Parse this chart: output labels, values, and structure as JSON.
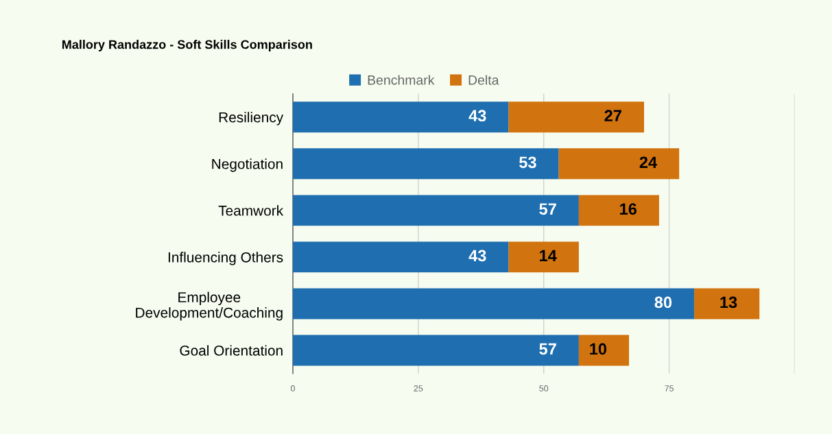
{
  "chart_data": {
    "type": "bar",
    "orientation": "horizontal",
    "stacked": true,
    "title": "Mallory Randazzo - Soft Skills Comparison",
    "categories": [
      "Resiliency",
      "Negotiation",
      "Teamwork",
      "Influencing Others",
      "Employee\nDevelopment/Coaching",
      "Goal Orientation"
    ],
    "series": [
      {
        "name": "Benchmark",
        "color": "#1f6fb0",
        "values": [
          43,
          53,
          57,
          43,
          80,
          57
        ]
      },
      {
        "name": "Delta",
        "color": "#d1730f",
        "values": [
          27,
          24,
          16,
          14,
          13,
          10
        ]
      }
    ],
    "xlim": [
      0,
      100
    ],
    "xticks": [
      0,
      25,
      50,
      75,
      {
        "value": 100,
        "label": null
      }
    ],
    "grid": "x",
    "legend": "top",
    "data_labels": true
  }
}
